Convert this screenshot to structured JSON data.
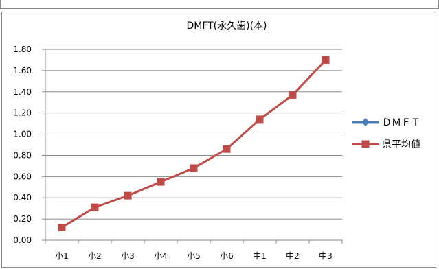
{
  "chart_data": {
    "type": "line",
    "title": "DMFT(永久歯)(本)",
    "categories": [
      "小1",
      "小2",
      "小3",
      "小4",
      "小5",
      "小6",
      "中1",
      "中2",
      "中3"
    ],
    "y_ticks": [
      "0.00",
      "0.20",
      "0.40",
      "0.60",
      "0.80",
      "1.00",
      "1.20",
      "1.40",
      "1.60",
      "1.80"
    ],
    "ylim": [
      0,
      1.8
    ],
    "grid": true,
    "legend_position": "right",
    "series": [
      {
        "name": "ＤＭＦＴ",
        "color": "#4a7ebb",
        "marker": "diamond",
        "values": [
          null,
          null,
          null,
          null,
          null,
          null,
          null,
          null,
          null
        ]
      },
      {
        "name": "県平均値",
        "color": "#be4b48",
        "marker": "square",
        "values": [
          0.12,
          0.31,
          0.42,
          0.55,
          0.68,
          0.86,
          1.14,
          1.37,
          1.7
        ]
      }
    ]
  }
}
